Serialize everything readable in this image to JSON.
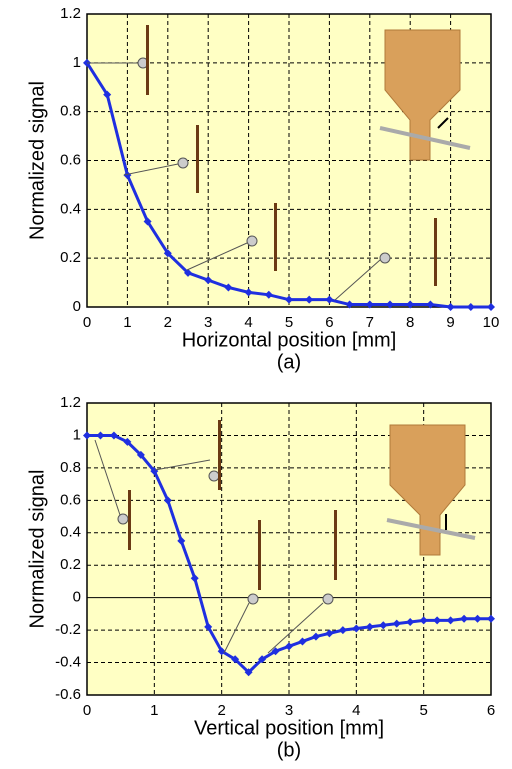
{
  "chart_data": [
    {
      "type": "line",
      "caption": "(a)",
      "xlabel": "Horizontal position [mm]",
      "ylabel": "Normalized signal",
      "x": [
        0,
        0.5,
        1,
        1.5,
        2,
        2.5,
        3,
        3.5,
        4,
        4.5,
        5,
        5.5,
        6,
        6.5,
        7,
        7.5,
        8,
        8.5,
        9,
        9.5,
        10
      ],
      "values": [
        1.0,
        0.87,
        0.54,
        0.35,
        0.22,
        0.14,
        0.11,
        0.08,
        0.06,
        0.05,
        0.03,
        0.03,
        0.03,
        0.01,
        0.01,
        0.01,
        0.01,
        0.01,
        0.0,
        0.0,
        0.0
      ],
      "color": "#1f2fe0",
      "background": "#ffffc4",
      "xlim": [
        0,
        10
      ],
      "xticks": [
        0,
        1,
        2,
        3,
        4,
        5,
        6,
        7,
        8,
        9,
        10
      ],
      "ylim": [
        0,
        1.2
      ],
      "yticks": [
        0,
        0.2,
        0.4,
        0.6,
        0.8,
        1,
        1.2
      ],
      "grid": true
    },
    {
      "type": "line",
      "caption": "(b)",
      "xlabel": "Vertical position [mm]",
      "ylabel": "Normalized signal",
      "x": [
        0,
        0.2,
        0.4,
        0.6,
        0.8,
        1.0,
        1.2,
        1.4,
        1.6,
        1.8,
        2.0,
        2.2,
        2.4,
        2.6,
        2.8,
        3.0,
        3.2,
        3.4,
        3.6,
        3.8,
        4.0,
        4.2,
        4.4,
        4.6,
        4.8,
        5.0,
        5.2,
        5.4,
        5.6,
        5.8,
        6.0
      ],
      "values": [
        1.0,
        1.0,
        1.0,
        0.96,
        0.88,
        0.78,
        0.6,
        0.35,
        0.12,
        -0.18,
        -0.33,
        -0.38,
        -0.46,
        -0.38,
        -0.33,
        -0.3,
        -0.27,
        -0.24,
        -0.22,
        -0.2,
        -0.19,
        -0.18,
        -0.17,
        -0.16,
        -0.15,
        -0.14,
        -0.14,
        -0.14,
        -0.13,
        -0.13,
        -0.13
      ],
      "color": "#1f2fe0",
      "background": "#ffffc4",
      "xlim": [
        0,
        6
      ],
      "xticks": [
        0,
        1,
        2,
        3,
        4,
        5,
        6
      ],
      "ylim": [
        -0.6,
        1.2
      ],
      "yticks": [
        -0.6,
        -0.4,
        -0.2,
        0,
        0.2,
        0.4,
        0.6,
        0.8,
        1,
        1.2
      ],
      "grid": true
    }
  ]
}
